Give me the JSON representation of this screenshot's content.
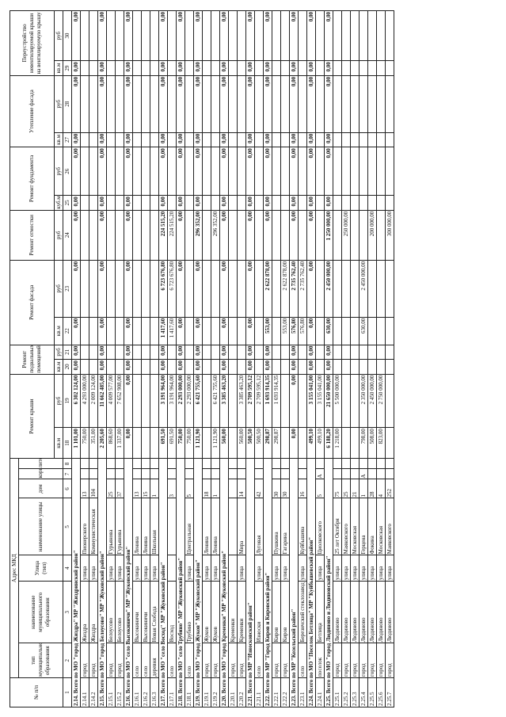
{
  "header": {
    "number": "№ п/п",
    "address": "Адрес МКД",
    "address_columns": [
      "тип муниципального образования",
      "наименование муниципального образования",
      "Улица (тип)",
      "наименование улицы",
      "дом",
      "корпус",
      "литера"
    ],
    "groups": [
      {
        "title": "Ремонт крыши",
        "units": [
          "кв.м",
          "руб"
        ],
        "numbers": [
          18,
          19
        ]
      },
      {
        "title": "Ремонт подвальных помещений",
        "units": [
          "кв.м",
          "руб"
        ],
        "numbers": [
          20,
          21
        ]
      },
      {
        "title": "Ремонт фасада",
        "units": [
          "кв.м",
          "руб"
        ],
        "numbers": [
          22,
          23
        ]
      },
      {
        "title": "Ремонт отмостки",
        "units": [
          "руб"
        ],
        "numbers": [
          24
        ]
      },
      {
        "title": "Ремонт фундамента",
        "units": [
          "куб.м",
          "руб"
        ],
        "numbers": [
          25,
          26
        ]
      },
      {
        "title": "Утепление фасада",
        "units": [
          "кв.м",
          "руб"
        ],
        "numbers": [
          27,
          28
        ]
      },
      {
        "title": "Переустройство невентилируемой крыши на вентилируемую крышу",
        "units": [
          "кв.м",
          "руб"
        ],
        "numbers": [
          29,
          30
        ]
      }
    ],
    "column_numbers": [
      1,
      2,
      3,
      4,
      5,
      6,
      7,
      8
    ]
  },
  "rows": [
    {
      "label": "2.14. Всего по МО \"город Жиздра\" МР \"Жиздринский район\"",
      "values": [
        "1 101,00",
        "6 302 124,00",
        "0,00",
        "0,00",
        "0,00",
        "0,00",
        "0,00",
        "0,00",
        "0,00",
        "0,00",
        "0,00",
        "0,00",
        "0,00"
      ]
    },
    {
      "cells": [
        "2.14.1",
        "город",
        "Жиздра",
        "улица",
        "Пионерского",
        "13",
        null,
        null
      ],
      "values": [
        "750,00",
        "4 293 000,00",
        null,
        null,
        null,
        null,
        null,
        null,
        null,
        null,
        null,
        null,
        null
      ]
    },
    {
      "cells": [
        "2.14.2",
        "город",
        "Жиздра",
        "улица",
        "Коммунистическая",
        "104",
        null,
        null
      ],
      "values": [
        "351,00",
        "2 009 124,00",
        null,
        null,
        null,
        null,
        null,
        null,
        null,
        null,
        null,
        null,
        null
      ]
    },
    {
      "label": "2.15. Всего по МО \"город Белоусово\" МР \"Жуковский район\"",
      "values": [
        "2 205,60",
        "11 662 485,00",
        "0,00",
        "0,00",
        "0,00",
        "0,00",
        "0,00",
        "0,00",
        "0,00",
        "0,00",
        "0,00",
        "0,00",
        "0,00"
      ]
    },
    {
      "cells": [
        "2.15.1",
        "город",
        "Белоусово",
        "улица",
        "Гурьянова",
        "25",
        null,
        null
      ],
      "values": [
        "868,60",
        "4 009 577,00",
        null,
        null,
        null,
        null,
        null,
        null,
        null,
        null,
        null,
        null,
        null
      ]
    },
    {
      "cells": [
        "2.15.2",
        "город",
        "Белоусово",
        "улица",
        "Гурьянова",
        "37",
        null,
        null
      ],
      "values": [
        "1 337,00",
        "7 652 908,00",
        null,
        null,
        null,
        null,
        null,
        null,
        null,
        null,
        null,
        null,
        null
      ]
    },
    {
      "label": "2.16. Всего по МО \"село Высокиничи\" МР \"Жуковский район\"",
      "values": [
        "0,00",
        "0,00",
        "0,00",
        "0,00",
        "0,00",
        "0,00",
        "0,00",
        "0,00",
        "0,00",
        "0,00",
        "0,00",
        "0,00",
        "0,00"
      ]
    },
    {
      "cells": [
        "2.16.1",
        "село",
        "Высокиничи",
        "улица",
        "Ленина",
        "13",
        null,
        null
      ],
      "values": [
        null,
        null,
        null,
        null,
        null,
        null,
        null,
        null,
        null,
        null,
        null,
        null,
        null
      ]
    },
    {
      "cells": [
        "2.16.2",
        "село",
        "Высокиничи",
        "улица",
        "Ленина",
        "15",
        null,
        null
      ],
      "values": [
        null,
        null,
        null,
        null,
        null,
        null,
        null,
        null,
        null,
        null,
        null,
        null,
        null
      ]
    },
    {
      "cells": [
        "2.16.3",
        "деревня",
        "Новая Слобода",
        "улица",
        "Школьная",
        "1",
        null,
        null
      ],
      "values": [
        null,
        null,
        null,
        null,
        null,
        null,
        null,
        null,
        null,
        null,
        null,
        null,
        null
      ]
    },
    {
      "label": "2.17. Всего по МО \"село Восход\" МР \"Жуковский район\"",
      "values": [
        "691,50",
        "3 191 964,00",
        "0,00",
        "0,00",
        "1 417,60",
        "6 723 676,80",
        "224 515,20",
        "0,00",
        "0,00",
        "0,00",
        "0,00",
        "0,00",
        "0,00"
      ]
    },
    {
      "cells": [
        "2.17.1",
        "село",
        "Восход",
        null,
        null,
        "3",
        null,
        null
      ],
      "values": [
        "691,50",
        "3 191 964,00",
        null,
        null,
        "1 417,60",
        "6 723 676,80",
        "224 515,20",
        null,
        null,
        null,
        null,
        null,
        null
      ]
    },
    {
      "label": "2.18. Всего по МО \"село Трубино\" МР \"Жуковский район\"",
      "values": [
        "750,00",
        "2 293 000,00",
        "0,00",
        "0,00",
        "0,00",
        "0,00",
        "0,00",
        "0,00",
        "0,00",
        "0,00",
        "0,00",
        "0,00",
        "0,00"
      ]
    },
    {
      "cells": [
        "2.18.1",
        "село",
        "Трубино",
        "улица",
        "Центральная",
        "5",
        null,
        null
      ],
      "values": [
        "750,00",
        "2 293 000,00",
        null,
        null,
        null,
        null,
        null,
        null,
        null,
        null,
        null,
        null,
        null
      ]
    },
    {
      "label": "2.19. Всего по МО \"город Жуков\" МР \"Жуковский район\"",
      "values": [
        "1 121,90",
        "6 421 755,60",
        "0,00",
        "0,00",
        "0,00",
        "0,00",
        "296 352,00",
        "0,00",
        "0,00",
        "0,00",
        "0,00",
        "0,00",
        "0,00"
      ]
    },
    {
      "cells": [
        "2.19.1",
        "город",
        "Жуков",
        "улица",
        "Ленина",
        "18",
        null,
        null
      ],
      "values": [
        null,
        null,
        null,
        null,
        null,
        null,
        null,
        null,
        null,
        null,
        null,
        null,
        null
      ]
    },
    {
      "cells": [
        "2.19.2",
        "город",
        "Жуков",
        "улица",
        "Ленина",
        "1",
        null,
        null
      ],
      "values": [
        "1 121,90",
        "6 421 755,60",
        null,
        null,
        null,
        null,
        "296 352,00",
        null,
        null,
        null,
        null,
        null,
        null
      ]
    },
    {
      "label": "2.20. Всего по МО \"город Кременки\" МР \"Жуковский район\"",
      "values": [
        "560,00",
        "3 385 463,20",
        "0,00",
        "0,00",
        "0,00",
        "0,00",
        "0,00",
        "0,00",
        "0,00",
        "0,00",
        "0,00",
        "0,00",
        "0,00"
      ]
    },
    {
      "cells": [
        "2.20.1",
        "город",
        "Кременки",
        null,
        null,
        null,
        null,
        null
      ],
      "values": [
        null,
        null,
        null,
        null,
        null,
        null,
        null,
        null,
        null,
        null,
        null,
        null,
        null
      ]
    },
    {
      "cells": [
        "2.20.2",
        "город",
        "Кременки",
        "улица",
        "Мира",
        "14",
        null,
        null
      ],
      "values": [
        "560,00",
        "3 385 463,20",
        null,
        null,
        null,
        null,
        null,
        null,
        null,
        null,
        null,
        null,
        null
      ]
    },
    {
      "label": "2.21. Всего по МР \"Износковский район\"",
      "values": [
        "500,50",
        "2 709 595,12",
        "0,00",
        "0,00",
        "0,00",
        "0,00",
        "0,00",
        "0,00",
        "0,00",
        "0,00",
        "0,00",
        "0,00",
        "0,00"
      ]
    },
    {
      "cells": [
        "2.21.1",
        "село",
        "Износки",
        "улица",
        "Луговая",
        "42",
        null,
        null
      ],
      "values": [
        "500,50",
        "2 709 595,12",
        null,
        null,
        null,
        null,
        null,
        null,
        null,
        null,
        null,
        null,
        null
      ]
    },
    {
      "label": "2.22. Всего по МР \"Город Киров и Кировский район\"",
      "values": [
        "298,87",
        "1 693 914,35",
        "0,00",
        "0,00",
        "553,00",
        "2 622 878,00",
        "0,00",
        "0,00",
        "0,00",
        "0,00",
        "0,00",
        "0,00",
        "0,00"
      ]
    },
    {
      "cells": [
        "2.22.1",
        "город",
        "Киров",
        "улица",
        "Пушкина",
        "30",
        null,
        null
      ],
      "values": [
        "298,87",
        "1 693 914,35",
        null,
        null,
        null,
        null,
        null,
        null,
        null,
        null,
        null,
        null,
        null
      ]
    },
    {
      "cells": [
        "2.22.2",
        "город",
        "Киров",
        "улица",
        "Гагарина",
        "30",
        null,
        null
      ],
      "values": [
        null,
        null,
        null,
        null,
        "553,00",
        "2 622 878,00",
        null,
        null,
        null,
        null,
        null,
        null,
        null
      ]
    },
    {
      "label": "2.23. Всего по МР \"Козельский район\"",
      "values": [
        "0,00",
        "0,00",
        "0,00",
        "0,00",
        "576,80",
        "2 735 762,40",
        "0,00",
        "0,00",
        "0,00",
        "0,00",
        "0,00",
        "0,00",
        "0,00"
      ]
    },
    {
      "cells": [
        "2.23.1",
        "село",
        "Березичский стеклозавод",
        "улица",
        "Куйбышева",
        "16",
        null,
        null
      ],
      "values": [
        null,
        null,
        null,
        null,
        "576,80",
        "2 735 762,40",
        null,
        null,
        null,
        null,
        null,
        null,
        null
      ]
    },
    {
      "label": "2.24. Всего по МО \"Поселок Бетлица\" МР \"Куйбышевский район\"",
      "values": [
        "499,10",
        "3 155 041,00",
        "0,00",
        "0,00",
        "0,00",
        "0,00",
        "0,00",
        "0,00",
        "0,00",
        "0,00",
        "0,00",
        "0,00",
        "0,00"
      ]
    },
    {
      "cells": [
        "2.24.1",
        "поселок",
        "Бетлица",
        "улица",
        "Циолковского",
        "5",
        "А",
        null
      ],
      "values": [
        "499,10",
        "3 155 041,00",
        null,
        null,
        null,
        null,
        null,
        null,
        null,
        null,
        null,
        null,
        null
      ]
    },
    {
      "label": "2.25. Всего по МО \"город Людиново и Людиновский район\"",
      "values": [
        "6 188,20",
        "21 650 000,00",
        "0,00",
        "0,00",
        "630,00",
        "2 450 000,00",
        "1 250 000,00",
        "0,00",
        "0,00",
        "0,00",
        "0,00",
        "0,00",
        "0,00"
      ]
    },
    {
      "cells": [
        "2.25.1",
        "город",
        "Людиново",
        "улица",
        "25 лет Октября",
        "75",
        null,
        null
      ],
      "values": [
        "1 218,00",
        "5 500 000,00",
        null,
        null,
        null,
        null,
        null,
        null,
        null,
        null,
        null,
        null,
        null
      ]
    },
    {
      "cells": [
        "2.25.2",
        "город",
        "Людиново",
        "улица",
        "Маяковского",
        "25",
        null,
        null
      ],
      "values": [
        null,
        null,
        null,
        null,
        null,
        null,
        "250 000,00",
        null,
        null,
        null,
        null,
        null,
        null
      ]
    },
    {
      "cells": [
        "2.25.3",
        "город",
        "Людиново",
        "улица",
        "Московская",
        "21",
        null,
        null
      ],
      "values": [
        null,
        null,
        null,
        null,
        null,
        null,
        null,
        null,
        null,
        null,
        null,
        null,
        null
      ]
    },
    {
      "cells": [
        "2.25.4",
        "город",
        "Людиново",
        "улица",
        "Герцена",
        "1",
        "А",
        null
      ],
      "values": [
        "798,00",
        "2 350 000,00",
        null,
        null,
        "630,00",
        "2 450 000,00",
        null,
        null,
        null,
        null,
        null,
        null,
        null
      ]
    },
    {
      "cells": [
        "2.25.5",
        "город",
        "Людиново",
        "улица",
        "Фокина",
        "28",
        null,
        null
      ],
      "values": [
        "508,00",
        "2 450 000,00",
        null,
        null,
        null,
        null,
        "200 000,00",
        null,
        null,
        null,
        null,
        null,
        null
      ]
    },
    {
      "cells": [
        "2.25.6",
        "город",
        "Людиново",
        "улица",
        "Московская",
        "4",
        null,
        null
      ],
      "values": [
        "823,00",
        "2 750 000,00",
        null,
        null,
        null,
        null,
        null,
        null,
        null,
        null,
        null,
        null,
        null
      ]
    },
    {
      "cells": [
        "2.25.7",
        "город",
        "Людиново",
        "улица",
        "Маяковского",
        "252",
        null,
        null
      ],
      "values": [
        null,
        null,
        null,
        null,
        null,
        null,
        "300 000,00",
        null,
        null,
        null,
        null,
        null,
        null
      ]
    }
  ]
}
